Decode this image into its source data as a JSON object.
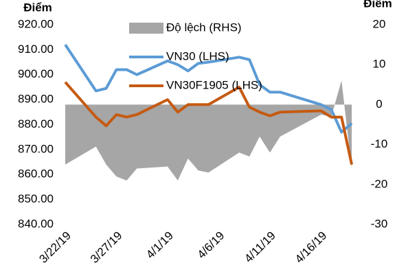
{
  "chart_data": {
    "type": "line",
    "y_axis_label": "Điểm",
    "y2_axis_label": "Điểm",
    "x": [
      "2019-03-22",
      "2019-03-25",
      "2019-03-26",
      "2019-03-27",
      "2019-03-28",
      "2019-03-29",
      "2019-04-01",
      "2019-04-02",
      "2019-04-03",
      "2019-04-04",
      "2019-04-05",
      "2019-04-08",
      "2019-04-09",
      "2019-04-10",
      "2019-04-11",
      "2019-04-12",
      "2019-04-16",
      "2019-04-17",
      "2019-04-18",
      "2019-04-19"
    ],
    "series": [
      {
        "name": "Độ lệch (RHS)",
        "type": "area",
        "axis": "y2",
        "color": "#a6a6a6",
        "values": [
          -15,
          -10.5,
          -15,
          -18,
          -19,
          -16,
          -15.5,
          -19,
          -13.5,
          -16.5,
          -17,
          -12,
          -13,
          -8,
          -12,
          -8,
          -2.5,
          -3,
          6,
          -16
        ]
      },
      {
        "name": "VN30 (LHS)",
        "type": "line",
        "axis": "y",
        "color": "#5b9bd5",
        "values": [
          912,
          893.5,
          894.5,
          902,
          902,
          900,
          905.5,
          904,
          901.5,
          904.5,
          905,
          907,
          906,
          896,
          893,
          893,
          888,
          886,
          877,
          880.5
        ]
      },
      {
        "name": "VN30F1905 (LHS)",
        "type": "line",
        "axis": "y",
        "color": "#c55a11",
        "values": [
          897,
          883,
          879.5,
          884,
          883,
          884,
          890,
          885,
          888,
          888,
          888,
          895,
          887,
          885,
          883.5,
          885,
          885.5,
          883,
          883,
          864
        ]
      }
    ],
    "xlim": [
      "2019-03-22",
      "2019-04-20"
    ],
    "xticks": [
      {
        "value": "2019-03-22",
        "label": "3/22/19"
      },
      {
        "value": "2019-03-27",
        "label": "3/27/19"
      },
      {
        "value": "2019-04-01",
        "label": "4/1/19"
      },
      {
        "value": "2019-04-06",
        "label": "4/6/19"
      },
      {
        "value": "2019-04-11",
        "label": "4/11/19"
      },
      {
        "value": "2019-04-16",
        "label": "4/16/19"
      }
    ],
    "ylim": [
      840,
      920
    ],
    "yticks": [
      {
        "value": 840,
        "label": "840.00"
      },
      {
        "value": 850,
        "label": "850.00"
      },
      {
        "value": 860,
        "label": "860.00"
      },
      {
        "value": 870,
        "label": "870.00"
      },
      {
        "value": 880,
        "label": "880.00"
      },
      {
        "value": 890,
        "label": "890.00"
      },
      {
        "value": 900,
        "label": "900.00"
      },
      {
        "value": 910,
        "label": "910.00"
      },
      {
        "value": 920,
        "label": "920.00"
      }
    ],
    "y2lim": [
      -30,
      20
    ],
    "y2ticks": [
      -30,
      -20,
      -10,
      0,
      10,
      20
    ],
    "legend": "top"
  }
}
